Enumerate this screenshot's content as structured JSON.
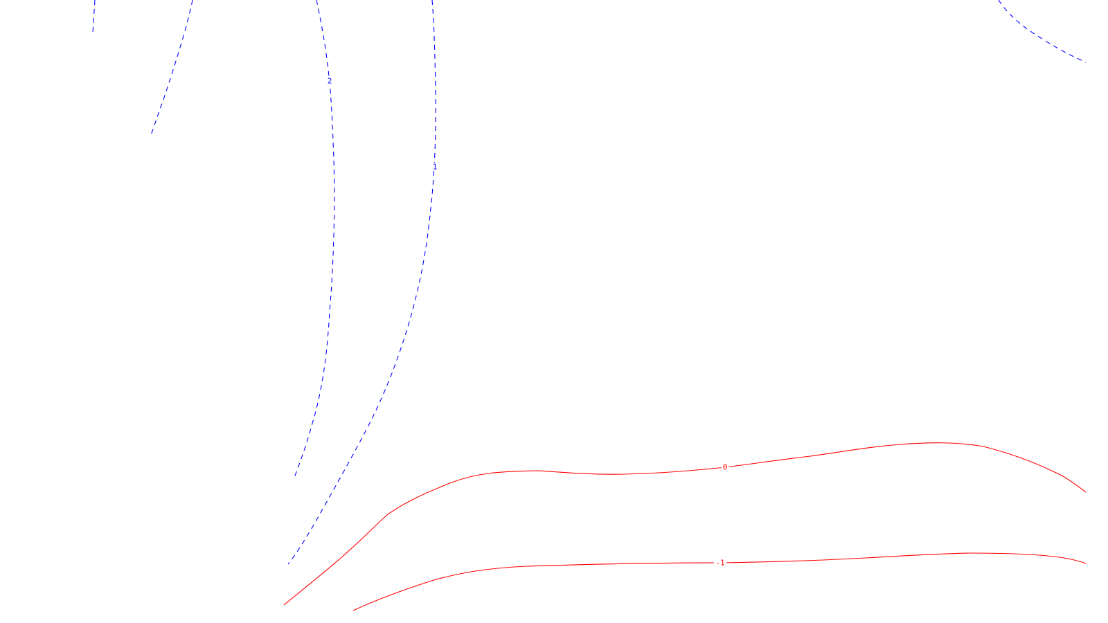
{
  "chart_data": {
    "type": "contour",
    "title": "",
    "xlabel": "",
    "ylabel": "",
    "grid": false,
    "legend": "none",
    "colors": {
      "positive": "#0000ff",
      "negative": "#ff0000",
      "background": "#ffffff"
    },
    "contours": [
      {
        "id": "c-2-left",
        "level": "2",
        "label": "",
        "sign": "positive",
        "style": "dashed"
      },
      {
        "id": "c-2-upper",
        "level": "2",
        "label": "",
        "sign": "positive",
        "style": "dashed"
      },
      {
        "id": "c-2-main",
        "level": "2",
        "label": "2",
        "sign": "positive",
        "style": "dashed"
      },
      {
        "id": "c-1-main",
        "level": "1",
        "label": "1",
        "sign": "positive",
        "style": "dashed"
      },
      {
        "id": "c-corner",
        "level": "",
        "label": "",
        "sign": "positive",
        "style": "dashed"
      },
      {
        "id": "c-0",
        "level": "0",
        "label": "0",
        "sign": "negative",
        "style": "solid"
      },
      {
        "id": "c-neg1",
        "level": "-1",
        "label": "-1",
        "sign": "negative",
        "style": "solid"
      }
    ]
  }
}
